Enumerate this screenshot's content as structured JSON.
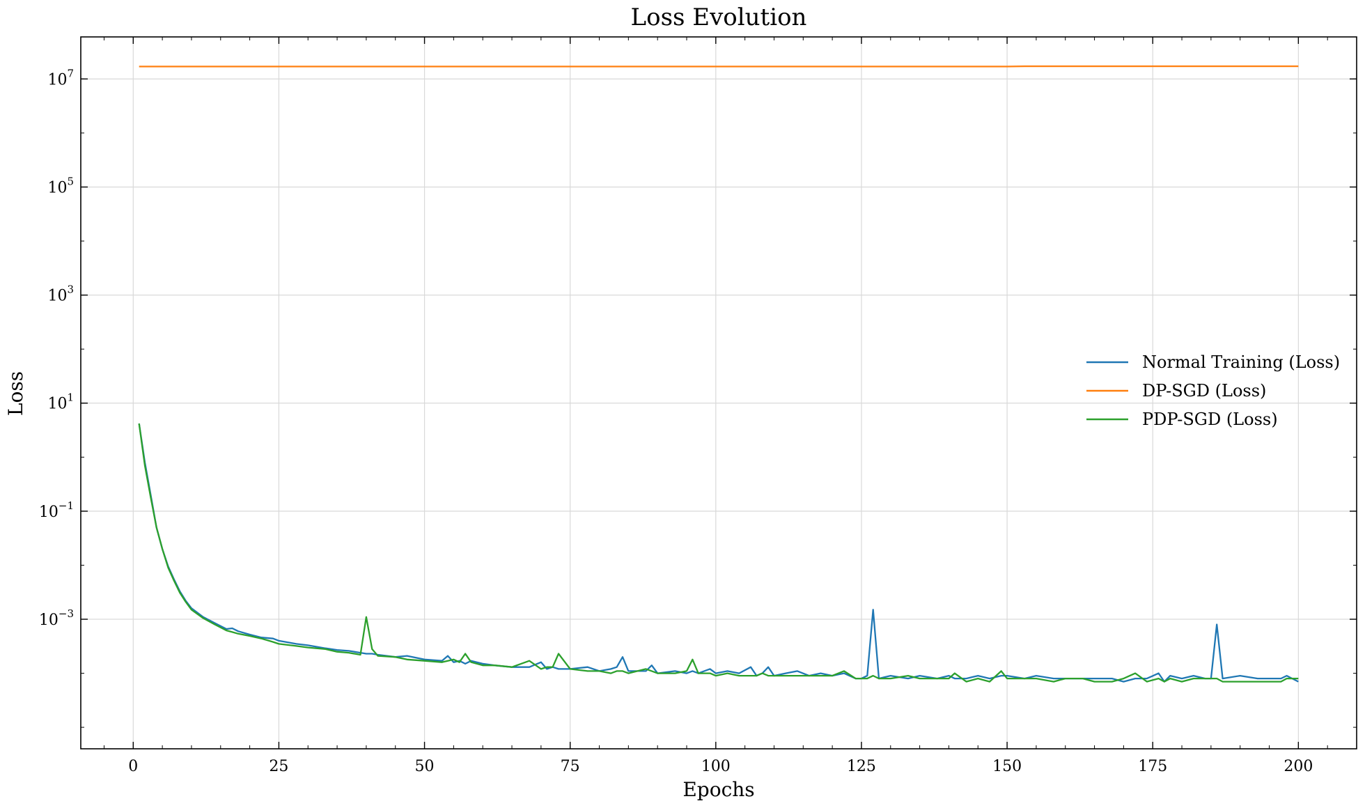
{
  "chart_data": {
    "type": "line",
    "title": "Loss Evolution",
    "xlabel": "Epochs",
    "ylabel": "Loss",
    "xlim": [
      -9,
      210
    ],
    "ylim": [
      4e-06,
      60000000.0
    ],
    "yscale": "log",
    "grid": true,
    "legend_position": "center-right",
    "x_ticks": [
      0,
      25,
      50,
      75,
      100,
      125,
      150,
      175,
      200
    ],
    "x_tick_labels": [
      "0",
      "25",
      "50",
      "75",
      "100",
      "125",
      "150",
      "175",
      "200"
    ],
    "y_ticks": [
      0.001,
      0.1,
      10,
      1000,
      100000,
      10000000
    ],
    "y_tick_labels": [
      {
        "base": "10",
        "exp": "−3"
      },
      {
        "base": "10",
        "exp": "−1"
      },
      {
        "base": "10",
        "exp": "1"
      },
      {
        "base": "10",
        "exp": "3"
      },
      {
        "base": "10",
        "exp": "5"
      },
      {
        "base": "10",
        "exp": "7"
      }
    ],
    "x": [
      1,
      2,
      3,
      4,
      5,
      6,
      7,
      8,
      9,
      10,
      12,
      14,
      16,
      17,
      18,
      20,
      22,
      24,
      25,
      28,
      30,
      33,
      35,
      37,
      39,
      40,
      41,
      42,
      45,
      47,
      50,
      53,
      54,
      55,
      56,
      57,
      58,
      60,
      62,
      65,
      68,
      70,
      71,
      72,
      73,
      75,
      78,
      80,
      82,
      83,
      84,
      85,
      88,
      89,
      90,
      93,
      95,
      96,
      97,
      99,
      100,
      102,
      104,
      106,
      107,
      108,
      109,
      110,
      112,
      114,
      116,
      118,
      120,
      122,
      124,
      125,
      126,
      127,
      128,
      130,
      133,
      135,
      138,
      140,
      141,
      143,
      145,
      147,
      149,
      150,
      153,
      155,
      158,
      160,
      163,
      165,
      168,
      170,
      172,
      174,
      176,
      177,
      178,
      180,
      182,
      184,
      185,
      186,
      187,
      190,
      193,
      196,
      197,
      198,
      200
    ],
    "series": [
      {
        "name": "Normal Training (Loss)",
        "color": "#1f77b4",
        "values": [
          4.2,
          0.8,
          0.2,
          0.05,
          0.02,
          0.0095,
          0.0055,
          0.0033,
          0.0022,
          0.0016,
          0.0011,
          0.00085,
          0.00066,
          0.00068,
          0.0006,
          0.00052,
          0.00046,
          0.00044,
          0.0004,
          0.00035,
          0.00033,
          0.00029,
          0.00027,
          0.00026,
          0.00024,
          0.00023,
          0.00023,
          0.00022,
          0.0002,
          0.00021,
          0.00018,
          0.00017,
          0.00021,
          0.00016,
          0.00017,
          0.00015,
          0.00017,
          0.00015,
          0.00014,
          0.00013,
          0.00013,
          0.00016,
          0.00012,
          0.00013,
          0.00012,
          0.00012,
          0.00013,
          0.00011,
          0.00012,
          0.00013,
          0.0002,
          0.00011,
          0.00011,
          0.00014,
          0.0001,
          0.00011,
          0.0001,
          0.00011,
          0.0001,
          0.00012,
          0.0001,
          0.00011,
          0.0001,
          0.00013,
          9e-05,
          0.0001,
          0.00013,
          9e-05,
          0.0001,
          0.00011,
          9e-05,
          0.0001,
          9e-05,
          0.0001,
          8e-05,
          8e-05,
          9e-05,
          0.0015,
          8e-05,
          9e-05,
          8e-05,
          9e-05,
          8e-05,
          9e-05,
          8e-05,
          8e-05,
          9e-05,
          8e-05,
          9e-05,
          9e-05,
          8e-05,
          9e-05,
          8e-05,
          8e-05,
          8e-05,
          8e-05,
          8e-05,
          7e-05,
          8e-05,
          8e-05,
          0.0001,
          7e-05,
          9e-05,
          8e-05,
          9e-05,
          8e-05,
          8e-05,
          0.0008,
          8e-05,
          9e-05,
          8e-05,
          8e-05,
          8e-05,
          9e-05,
          7e-05
        ]
      },
      {
        "name": "DP-SGD (Loss)",
        "color": "#ff7f0e",
        "values": [
          17000000.0,
          17000000.0,
          17000000.0,
          17000000.0,
          17000000.0,
          17000000.0,
          17000000.0,
          17000000.0,
          17000000.0,
          17000000.0,
          17000000.0,
          17000000.0,
          17000000.0,
          17000000.0,
          17000000.0,
          17000000.0,
          17000000.0,
          17000000.0,
          17000000.0,
          17000000.0,
          17000000.0,
          17000000.0,
          17000000.0,
          17000000.0,
          17000000.0,
          17000000.0,
          17000000.0,
          17000000.0,
          17000000.0,
          17000000.0,
          17000000.0,
          17000000.0,
          17000000.0,
          17000000.0,
          17000000.0,
          17000000.0,
          17000000.0,
          17000000.0,
          17000000.0,
          17000000.0,
          17000000.0,
          17000000.0,
          17000000.0,
          17000000.0,
          17000000.0,
          17000000.0,
          17000000.0,
          17000000.0,
          17000000.0,
          17000000.0,
          17000000.0,
          17000000.0,
          17000000.0,
          17000000.0,
          17000000.0,
          17000000.0,
          17000000.0,
          17000000.0,
          17000000.0,
          17000000.0,
          17000000.0,
          17000000.0,
          17000000.0,
          17000000.0,
          17000000.0,
          17000000.0,
          17000000.0,
          17000000.0,
          17000000.0,
          17000000.0,
          17000000.0,
          17000000.0,
          17000000.0,
          17000000.0,
          17000000.0,
          17000000.0,
          17000000.0,
          17000000.0,
          17000000.0,
          17000000.0,
          17000000.0,
          17000000.0,
          17000000.0,
          17000000.0,
          17000000.0,
          17000000.0,
          17000000.0,
          17000000.0,
          17000000.0,
          17000000.0,
          17200000.0,
          17200000.0,
          17200000.0,
          17200000.0,
          17200000.0,
          17200000.0,
          17200000.0,
          17200000.0,
          17200000.0,
          17200000.0,
          17200000.0,
          17200000.0,
          17200000.0,
          17200000.0,
          17200000.0,
          17200000.0,
          17200000.0,
          17200000.0,
          17200000.0,
          17200000.0,
          17200000.0,
          17200000.0,
          17200000.0,
          17200000.0,
          17200000.0
        ]
      },
      {
        "name": "PDP-SGD (Loss)",
        "color": "#2ca02c",
        "values": [
          4.2,
          0.7,
          0.18,
          0.05,
          0.02,
          0.009,
          0.0052,
          0.0031,
          0.0021,
          0.0015,
          0.00105,
          0.0008,
          0.00062,
          0.00058,
          0.00054,
          0.00049,
          0.00044,
          0.00038,
          0.00035,
          0.00032,
          0.0003,
          0.00028,
          0.00025,
          0.00024,
          0.00022,
          0.0011,
          0.00028,
          0.00021,
          0.0002,
          0.00018,
          0.00017,
          0.00016,
          0.00017,
          0.00018,
          0.00016,
          0.00023,
          0.00016,
          0.00014,
          0.00014,
          0.00013,
          0.00017,
          0.00012,
          0.00013,
          0.00013,
          0.00023,
          0.00012,
          0.00011,
          0.00011,
          0.0001,
          0.00011,
          0.00011,
          0.0001,
          0.00012,
          0.00011,
          0.0001,
          0.0001,
          0.00011,
          0.00018,
          0.0001,
          0.0001,
          9e-05,
          0.0001,
          9e-05,
          9e-05,
          9e-05,
          0.0001,
          9e-05,
          9e-05,
          9e-05,
          9e-05,
          9e-05,
          9e-05,
          9e-05,
          0.00011,
          8e-05,
          8e-05,
          8e-05,
          9e-05,
          8e-05,
          8e-05,
          9e-05,
          8e-05,
          8e-05,
          8e-05,
          0.0001,
          7e-05,
          8e-05,
          7e-05,
          0.00011,
          8e-05,
          8e-05,
          8e-05,
          7e-05,
          8e-05,
          8e-05,
          7e-05,
          7e-05,
          8e-05,
          0.0001,
          7e-05,
          8e-05,
          7e-05,
          8e-05,
          7e-05,
          8e-05,
          8e-05,
          8e-05,
          8e-05,
          7e-05,
          7e-05,
          7e-05,
          7e-05,
          7e-05,
          8e-05,
          8e-05
        ]
      }
    ]
  }
}
